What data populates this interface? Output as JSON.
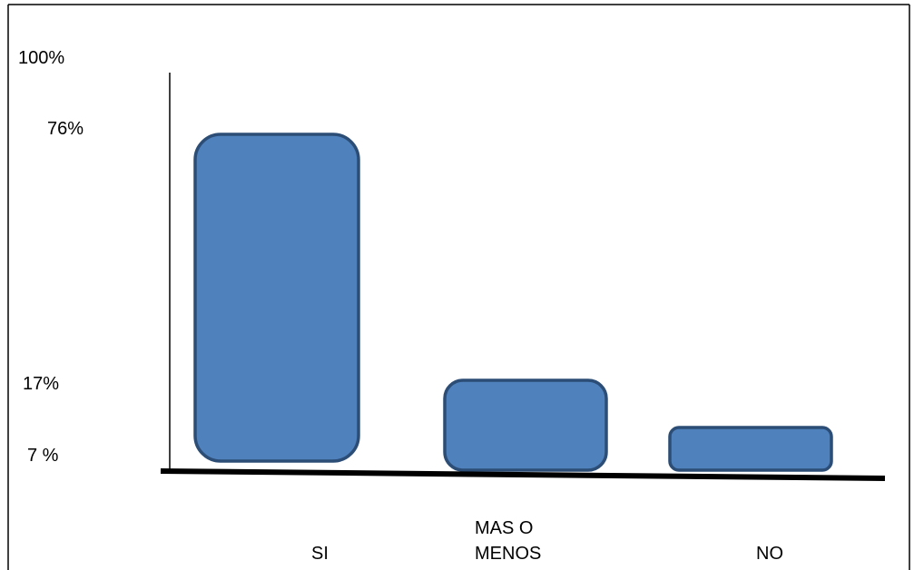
{
  "chart_data": {
    "type": "bar",
    "categories": [
      "SI",
      "MAS O\nMENOS",
      "NO"
    ],
    "values": [
      76,
      17,
      7
    ],
    "value_labels": [
      "76%",
      "17%",
      "7 %"
    ],
    "axis_top_label": "100%",
    "ylim": [
      0,
      100
    ],
    "grid": false,
    "legend": "none",
    "colors": {
      "bar_fill": "#4f81bd",
      "bar_stroke": "#2c4d75",
      "axis": "#000000",
      "frame": "#000000"
    }
  }
}
